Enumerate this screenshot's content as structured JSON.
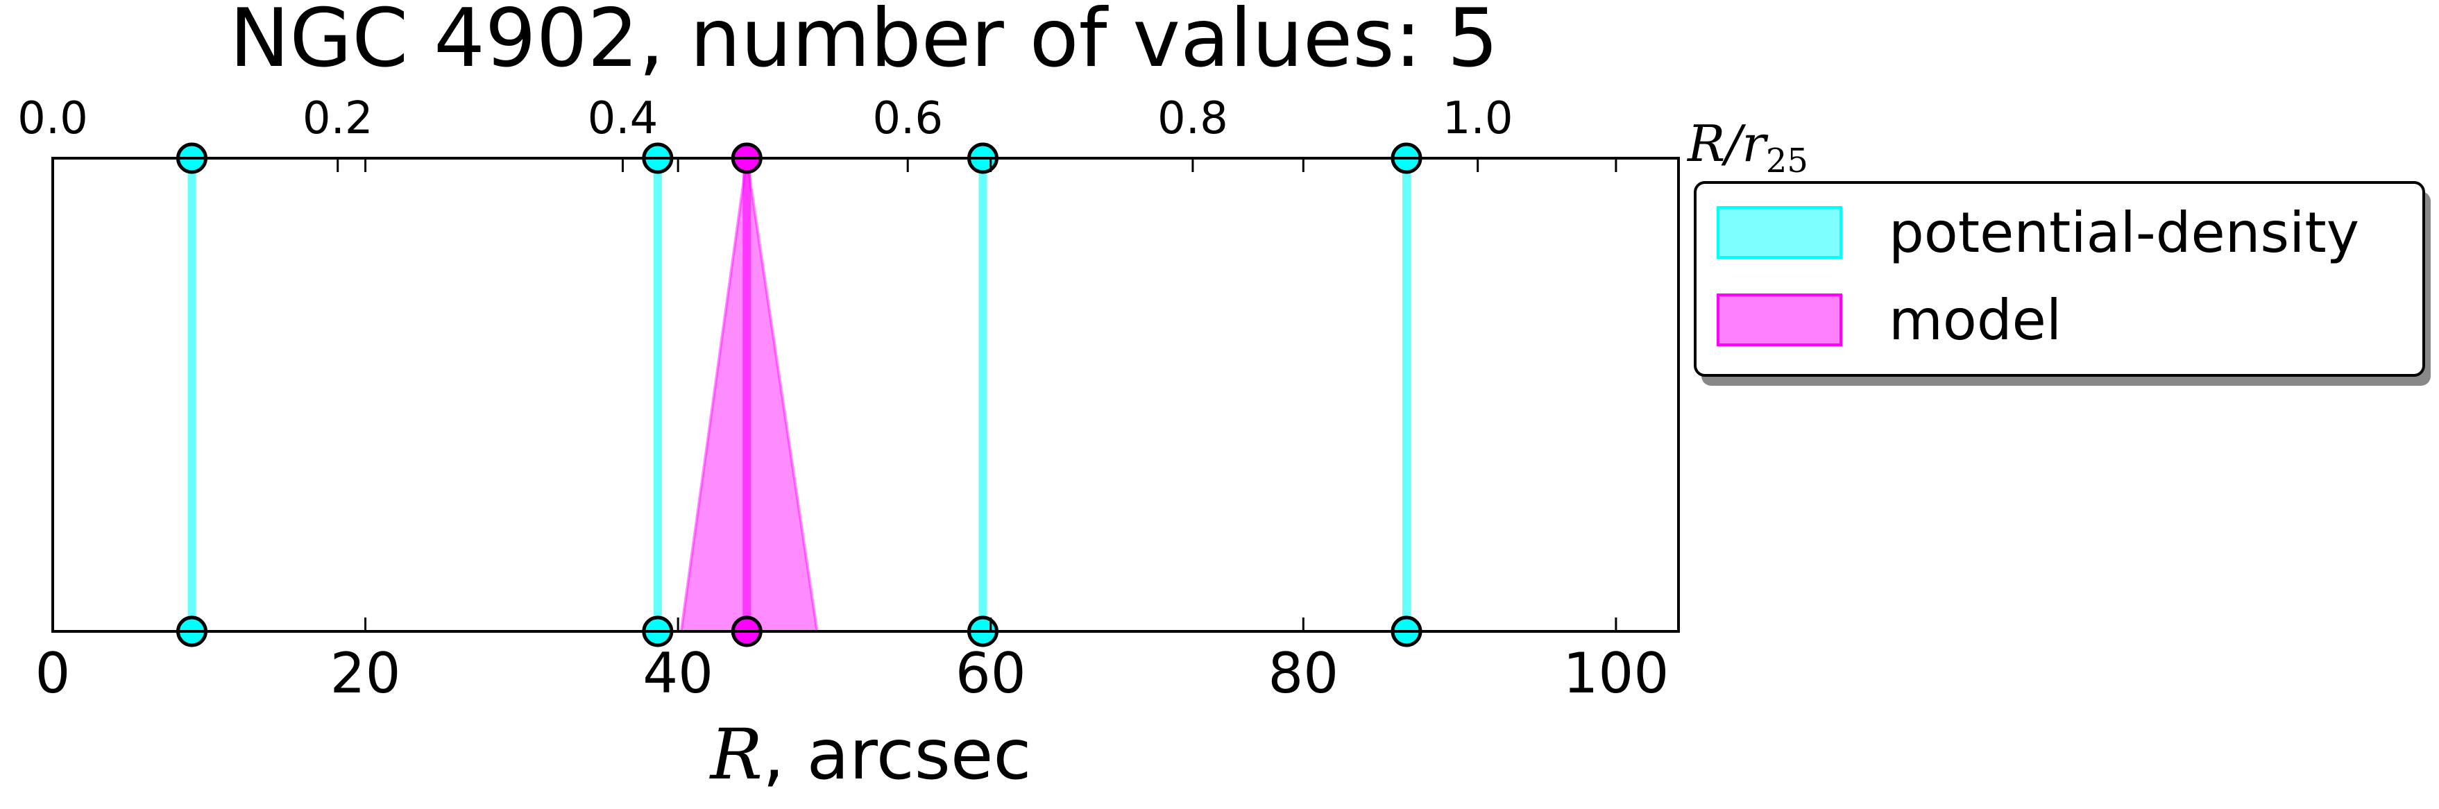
{
  "chart_data": {
    "type": "line",
    "title": "NGC 4902, number of values: 5",
    "xlabel_var": "R",
    "xlabel_rest": ", arcsec",
    "xlim": [
      0,
      104
    ],
    "xticks": [
      0,
      20,
      40,
      60,
      80,
      100
    ],
    "top_axis": {
      "label_var": "R/r",
      "label_sub": "25",
      "ticks": [
        0.0,
        0.2,
        0.4,
        0.6,
        0.8,
        1.0
      ],
      "tick_labels": [
        "0.0",
        "0.2",
        "0.4",
        "0.6",
        "0.8",
        "1.0"
      ],
      "scale_top_per_arcsec": 0.01097
    },
    "grid": false,
    "legend_position": "outside-right-top",
    "series": [
      {
        "name": "potential-density",
        "kind": "vertical-lines",
        "color": "#00ffff",
        "x": [
          8.9,
          38.7,
          59.5,
          86.6
        ]
      },
      {
        "name": "model",
        "kind": "vertical-line-with-band",
        "color": "#ff00ff",
        "x": [
          44.4
        ],
        "band_bottom": [
          40.2,
          48.9
        ]
      }
    ]
  }
}
